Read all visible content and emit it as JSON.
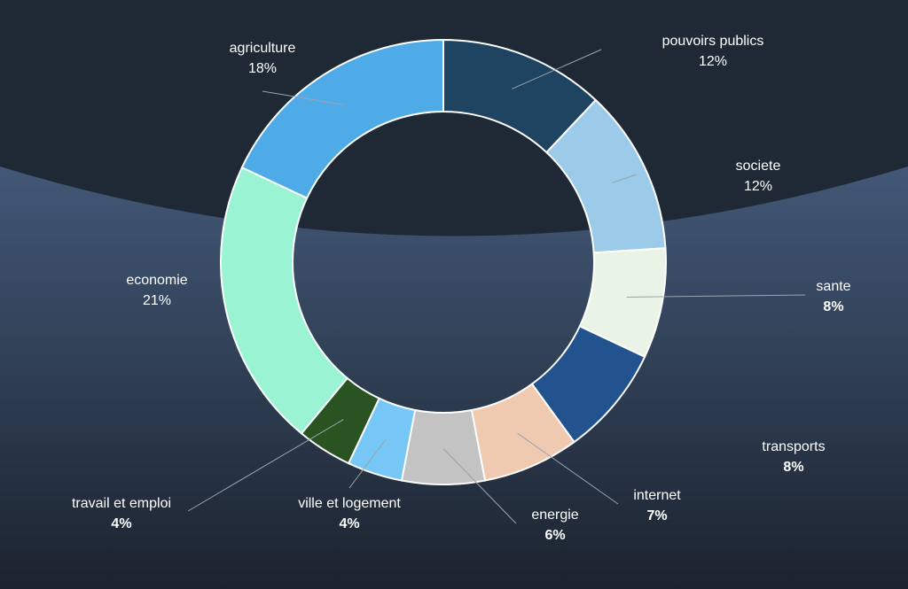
{
  "chart_data": {
    "type": "pie",
    "donut": true,
    "title": "",
    "categories": [
      "pouvoirs publics",
      "societe",
      "sante",
      "transports",
      "internet",
      "energie",
      "ville et logement",
      "travail et emploi",
      "economie",
      "agriculture"
    ],
    "values": [
      12,
      12,
      8,
      8,
      7,
      6,
      4,
      4,
      21,
      18
    ],
    "value_labels": [
      "12%",
      "12%",
      "8%",
      "8%",
      "7%",
      "6%",
      "4%",
      "4%",
      "21%",
      "18%"
    ],
    "colors": [
      "#1f4461",
      "#9ccae9",
      "#eaf4e6",
      "#23538f",
      "#efc9b0",
      "#c3c3c3",
      "#76c7f6",
      "#2a5322",
      "#9af3d2",
      "#4eabe8"
    ],
    "label_bold": [
      false,
      false,
      true,
      true,
      true,
      true,
      true,
      true,
      false,
      false
    ],
    "slice_border_color": "#ffffff",
    "legend": "none"
  },
  "background": {
    "top_color": "#1f2935",
    "band_color": "#425877",
    "bottom_color": "#1b232e"
  }
}
